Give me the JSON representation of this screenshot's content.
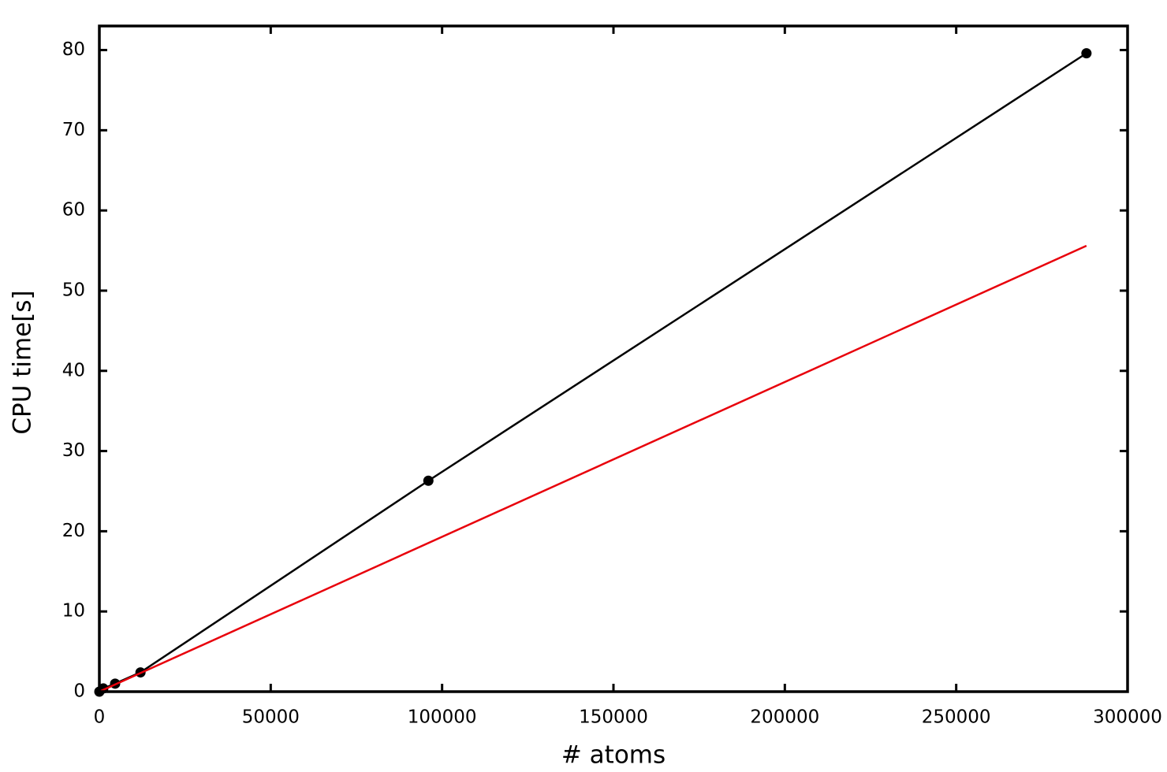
{
  "chart_data": {
    "type": "line",
    "x_label": "# atoms",
    "y_label": "CPU time[s]",
    "xlim": [
      0,
      300000
    ],
    "ylim": [
      0,
      83
    ],
    "xticks": [
      0,
      50000,
      100000,
      150000,
      200000,
      250000,
      300000
    ],
    "yticks": [
      0,
      10,
      20,
      30,
      40,
      50,
      60,
      70,
      80
    ],
    "grid": false,
    "series": [
      {
        "color": "#000000",
        "markers": true,
        "x": [
          0,
          1150,
          4600,
          12000,
          96000,
          288000
        ],
        "values": [
          0,
          0.4,
          1.0,
          2.4,
          26.3,
          79.6
        ]
      },
      {
        "color": "#e8000b",
        "markers": false,
        "x": [
          0,
          288000
        ],
        "values": [
          0,
          55.6
        ]
      }
    ]
  }
}
